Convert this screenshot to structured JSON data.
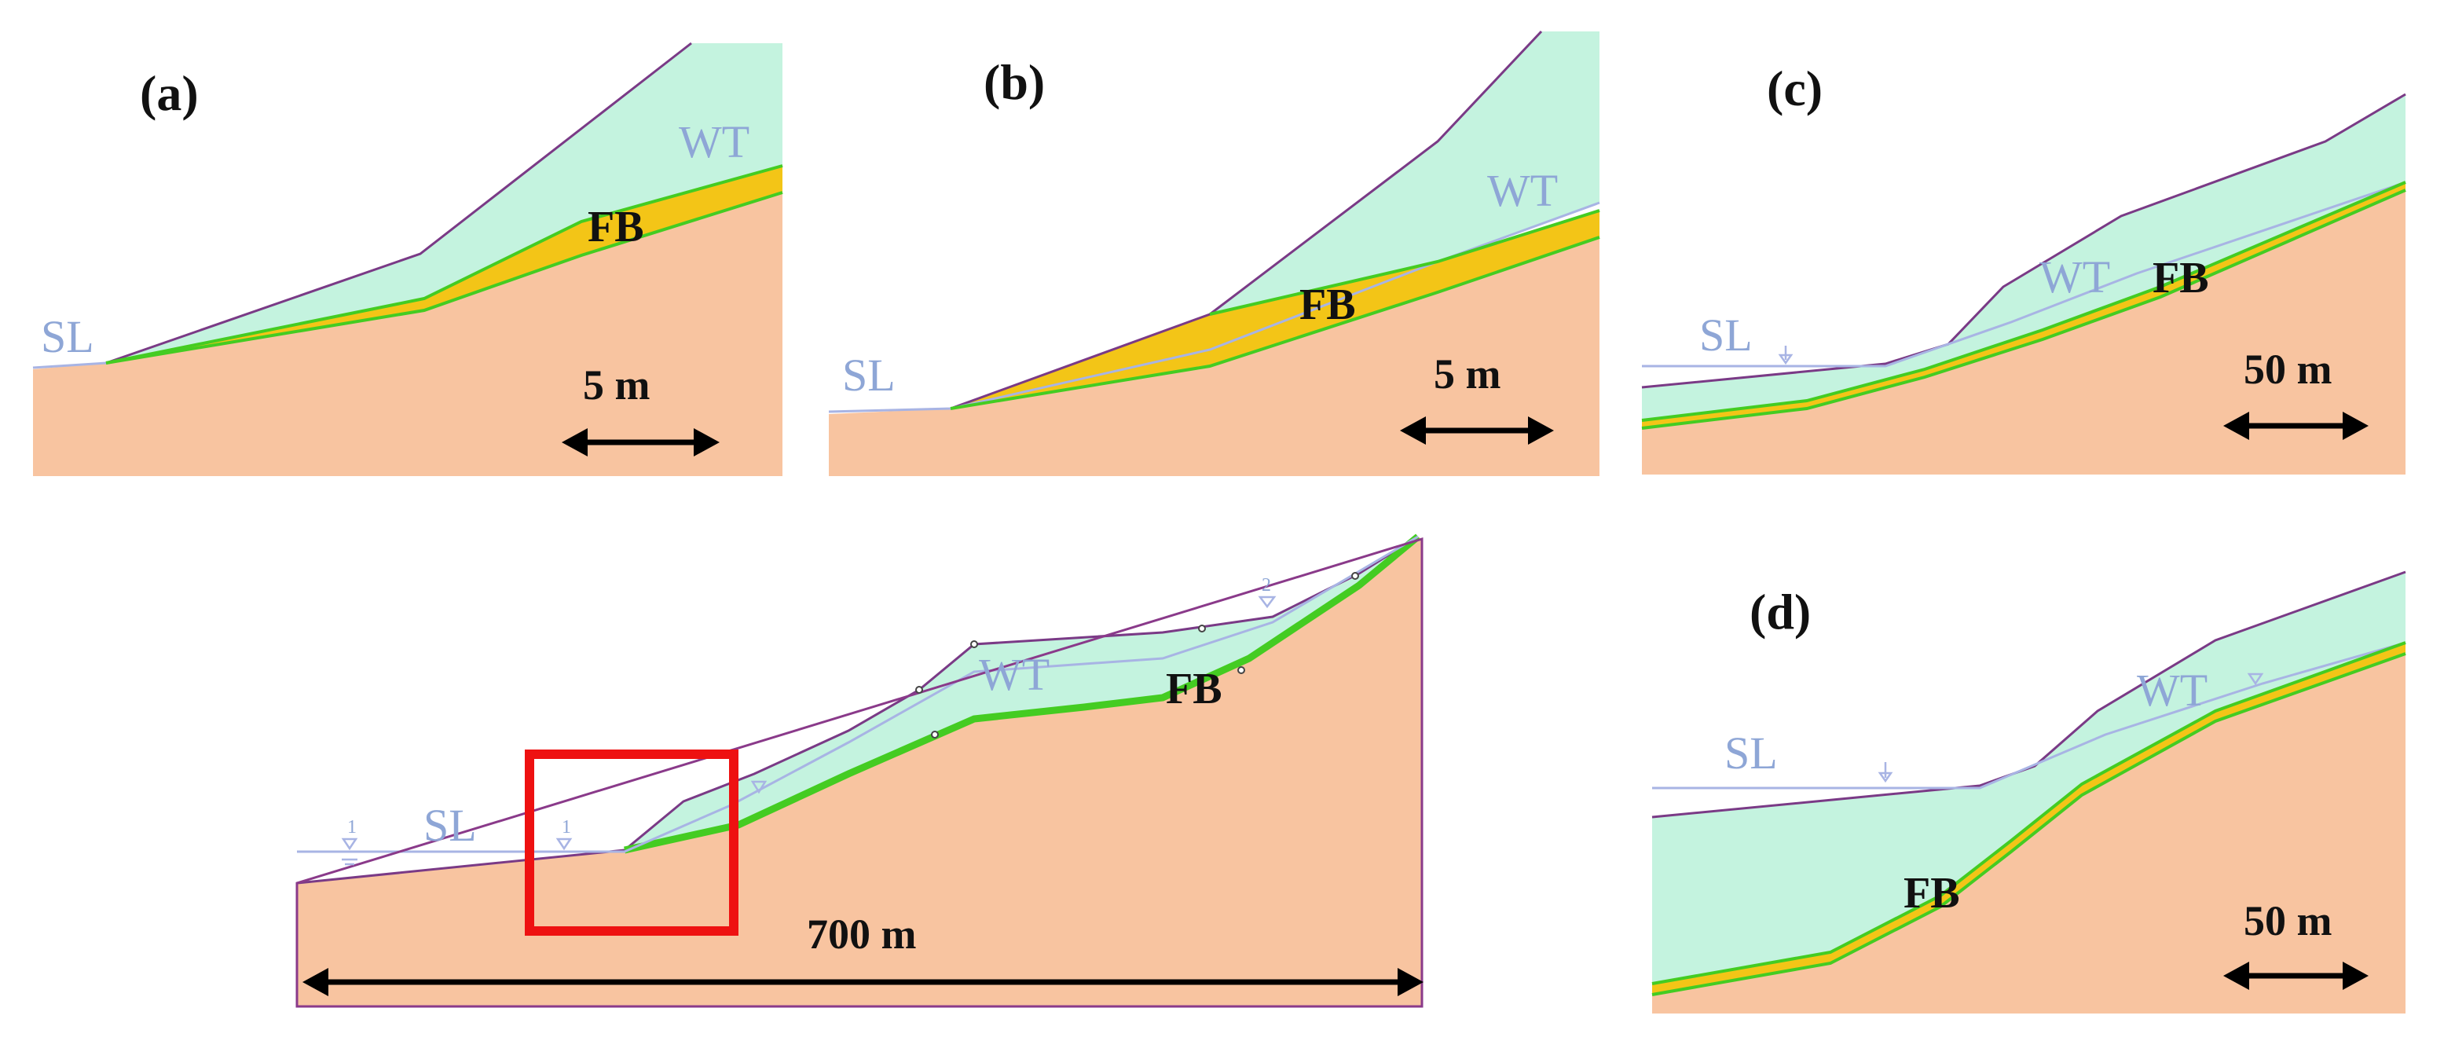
{
  "figure": {
    "panels": [
      {
        "id": "a",
        "label": "(a)",
        "sea_level": "SL",
        "water_table": "WT",
        "layer": "FB",
        "scale": "5 m"
      },
      {
        "id": "b",
        "label": "(b)",
        "sea_level": "SL",
        "water_table": "WT",
        "layer": "FB",
        "scale": "5 m"
      },
      {
        "id": "c",
        "label": "(c)",
        "sea_level": "SL",
        "water_table": "WT",
        "layer": "FB",
        "scale": "50 m"
      },
      {
        "id": "d",
        "label": "(d)",
        "sea_level": "SL",
        "water_table": "WT",
        "layer": "FB",
        "scale": "50 m"
      }
    ],
    "overview": {
      "sea_level": "SL",
      "water_table": "WT",
      "layer": "FB",
      "scale": "700 m",
      "water_marks": [
        "1",
        "1",
        "2"
      ]
    },
    "colors": {
      "bedrock": "#f8c4a0",
      "cover_soil": "#c4f3df",
      "fine_bed": "#f3c517",
      "surface_line": "#7a3a86",
      "interface_line": "#44cc22",
      "water_line": "#a8b4e4",
      "highlight_box": "#ee1111"
    }
  }
}
